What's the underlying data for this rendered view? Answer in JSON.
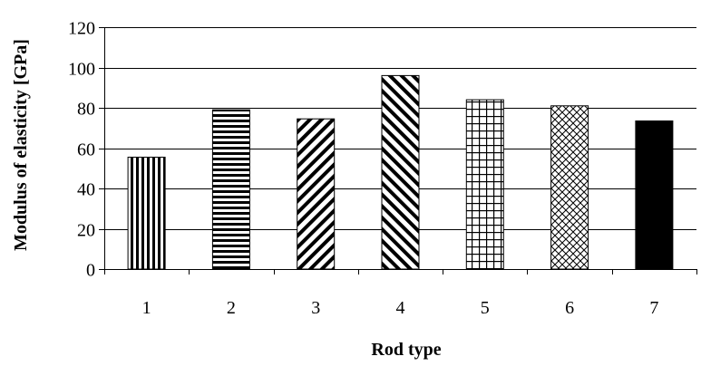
{
  "chart_data": {
    "type": "bar",
    "title": "",
    "xlabel": "Rod type",
    "ylabel": "Modulus of elasticity [GPa]",
    "categories": [
      "1",
      "2",
      "3",
      "4",
      "5",
      "6",
      "7"
    ],
    "values": [
      55.5,
      79,
      74.5,
      96,
      84,
      81,
      73.5
    ],
    "ylim": [
      0,
      120
    ],
    "yticks": [
      "0",
      "20",
      "40",
      "60",
      "80",
      "100",
      "120"
    ],
    "grid": true,
    "legend": "none",
    "bar_patterns": [
      "vertical-lines",
      "horizontal-lines",
      "diagonal-up",
      "diagonal-down",
      "grid",
      "crosshatch",
      "solid"
    ],
    "colors": {
      "bar_fill": "#000000",
      "bar_background": "#ffffff",
      "grid": "#000000"
    }
  }
}
